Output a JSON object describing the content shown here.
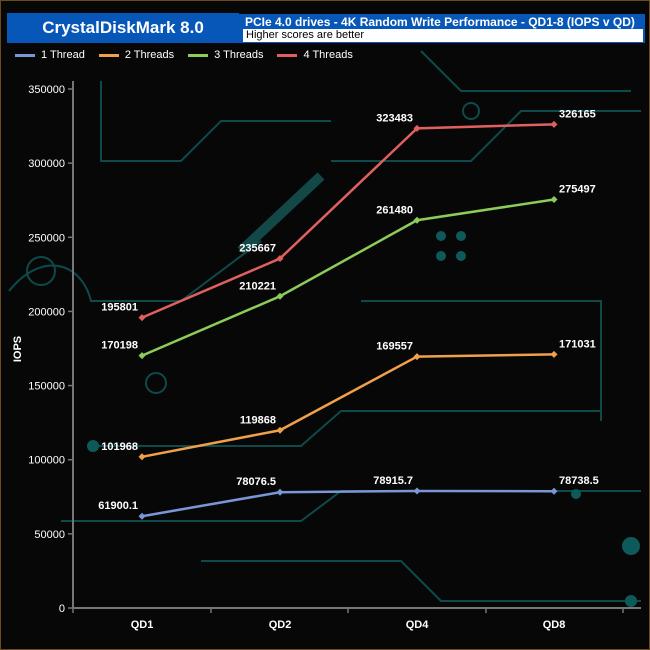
{
  "header": {
    "title": "CrystalDiskMark 8.0",
    "subtitle": "PCIe 4.0 drives - 4K Random Write Performance - QD1-8 (IOPS v QD)",
    "note": "Higher scores are better"
  },
  "chart_data": {
    "type": "line",
    "categories": [
      "QD1",
      "QD2",
      "QD4",
      "QD8"
    ],
    "ylabel": "IOPS",
    "xlabel": "",
    "ylim": [
      0,
      350000
    ],
    "yticks": [
      0,
      50000,
      100000,
      150000,
      200000,
      250000,
      300000,
      350000
    ],
    "legend": "top-left",
    "grid": false,
    "series": [
      {
        "name": "1 Thread",
        "color": "#7b96d6",
        "values": [
          61900.1,
          78076.5,
          78915.7,
          78738.5
        ],
        "labels": [
          "61900.1",
          "78076.5",
          "78915.7",
          "78738.5"
        ]
      },
      {
        "name": "2 Threads",
        "color": "#f0a04b",
        "values": [
          101968,
          119868,
          169557,
          171031
        ],
        "labels": [
          "101968",
          "119868",
          "169557",
          "171031"
        ]
      },
      {
        "name": "3 Threads",
        "color": "#8ccc5a",
        "values": [
          170198,
          210221,
          261480,
          275497
        ],
        "labels": [
          "170198",
          "210221",
          "261480",
          "275497"
        ]
      },
      {
        "name": "4 Threads",
        "color": "#e06060",
        "values": [
          195801,
          235667,
          323483,
          326165
        ],
        "labels": [
          "195801",
          "235667",
          "323483",
          "326165"
        ]
      }
    ]
  }
}
